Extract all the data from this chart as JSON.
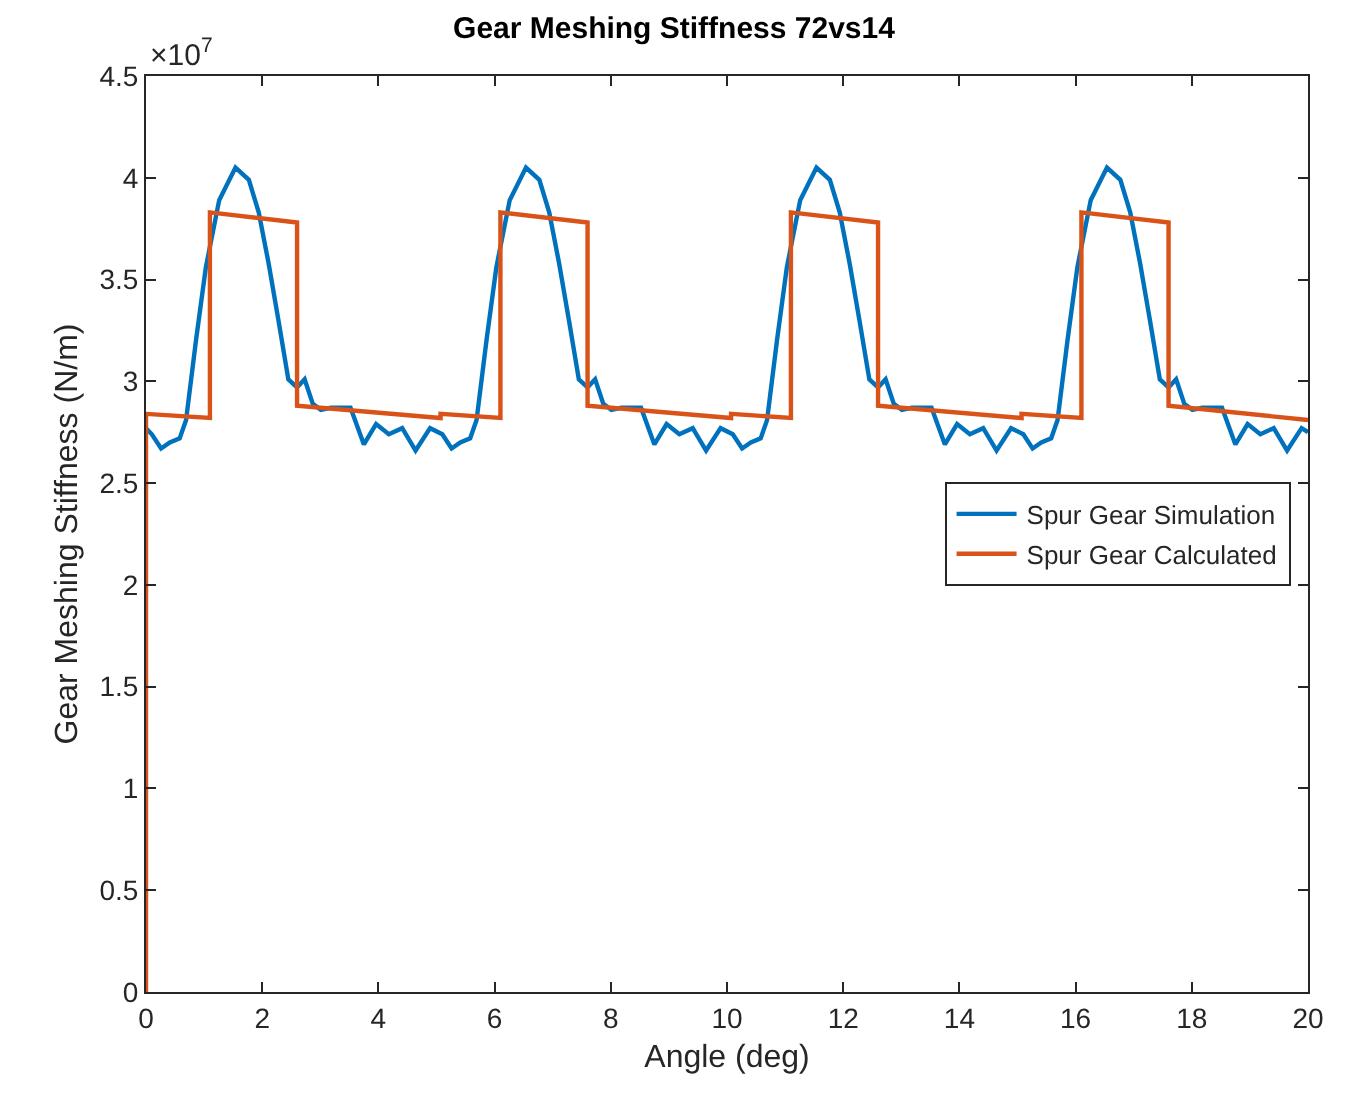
{
  "chart_data": {
    "type": "line",
    "title": "Gear Meshing Stiffness 72vs14",
    "xlabel": "Angle (deg)",
    "ylabel": "Gear Meshing Stiffness (N/m)",
    "annotations": [
      "×10$^{7}$"
    ],
    "xlim": [
      0,
      20
    ],
    "xticks": [
      0,
      2,
      4,
      6,
      8,
      10,
      12,
      14,
      16,
      18,
      20
    ],
    "ylim": [
      0,
      4.5
    ],
    "yticks": [
      0,
      0.5,
      1,
      1.5,
      2,
      2.5,
      3,
      3.5,
      4,
      4.5
    ],
    "legend": "right",
    "line_style": "solid",
    "marker": "none",
    "series": [
      {
        "name": "Spur Gear Simulation",
        "color": "#0072bd",
        "x": [
          0,
          0.1,
          0.26,
          0.41,
          0.58,
          0.69,
          0.86,
          1.03,
          1.26,
          1.54,
          1.77,
          1.94,
          2.11,
          2.28,
          2.45,
          2.6,
          2.73,
          2.87,
          3.01,
          3.18,
          3.52,
          3.75,
          3.96,
          4.18,
          4.41,
          4.64,
          4.89,
          5.1,
          5.26,
          5.41,
          5.58,
          5.69,
          5.86,
          6.03,
          6.26,
          6.54,
          6.77,
          6.94,
          7.11,
          7.28,
          7.45,
          7.6,
          7.73,
          7.87,
          8.01,
          8.18,
          8.52,
          8.75,
          8.96,
          9.18,
          9.41,
          9.64,
          9.89,
          10.1,
          10.26,
          10.41,
          10.58,
          10.69,
          10.86,
          11.03,
          11.26,
          11.54,
          11.77,
          11.94,
          12.11,
          12.28,
          12.45,
          12.6,
          12.73,
          12.87,
          13.01,
          13.18,
          13.52,
          13.75,
          13.96,
          14.18,
          14.41,
          14.64,
          14.89,
          15.1,
          15.26,
          15.41,
          15.58,
          15.69,
          15.86,
          16.03,
          16.26,
          16.54,
          16.77,
          16.94,
          17.11,
          17.28,
          17.45,
          17.6,
          17.73,
          17.87,
          18.01,
          18.18,
          18.52,
          18.75,
          18.96,
          19.18,
          19.41,
          19.64,
          19.89,
          20
        ],
        "values": [
          2.77,
          2.74,
          2.67,
          2.7,
          2.72,
          2.81,
          3.2,
          3.56,
          3.89,
          4.05,
          3.99,
          3.83,
          3.58,
          3.3,
          3.01,
          2.97,
          3.01,
          2.89,
          2.86,
          2.87,
          2.87,
          2.69,
          2.79,
          2.74,
          2.77,
          2.66,
          2.77,
          2.74,
          2.67,
          2.7,
          2.72,
          2.81,
          3.2,
          3.56,
          3.89,
          4.05,
          3.99,
          3.83,
          3.58,
          3.3,
          3.01,
          2.97,
          3.01,
          2.89,
          2.86,
          2.87,
          2.87,
          2.69,
          2.79,
          2.74,
          2.77,
          2.66,
          2.77,
          2.74,
          2.67,
          2.7,
          2.72,
          2.81,
          3.2,
          3.56,
          3.89,
          4.05,
          3.99,
          3.83,
          3.58,
          3.3,
          3.01,
          2.97,
          3.01,
          2.89,
          2.86,
          2.87,
          2.87,
          2.69,
          2.79,
          2.74,
          2.77,
          2.66,
          2.77,
          2.74,
          2.67,
          2.7,
          2.72,
          2.81,
          3.2,
          3.56,
          3.89,
          4.05,
          3.99,
          3.83,
          3.58,
          3.3,
          3.01,
          2.97,
          3.01,
          2.89,
          2.86,
          2.87,
          2.87,
          2.69,
          2.79,
          2.74,
          2.77,
          2.66,
          2.77,
          2.75
        ]
      },
      {
        "name": "Spur Gear Calculated",
        "color": "#d95319",
        "x": [
          0,
          0,
          1.1,
          1.1,
          2.6,
          2.6,
          5.07,
          5.07,
          6.1,
          6.1,
          7.6,
          7.6,
          10.07,
          10.07,
          11.1,
          11.1,
          12.6,
          12.6,
          15.07,
          15.07,
          16.1,
          16.1,
          17.6,
          17.6,
          20
        ],
        "values": [
          0,
          2.84,
          2.82,
          3.83,
          3.78,
          2.88,
          2.82,
          2.84,
          2.82,
          3.83,
          3.78,
          2.88,
          2.82,
          2.84,
          2.82,
          3.83,
          3.78,
          2.88,
          2.82,
          2.84,
          2.82,
          3.83,
          3.78,
          2.88,
          2.81
        ]
      }
    ]
  }
}
